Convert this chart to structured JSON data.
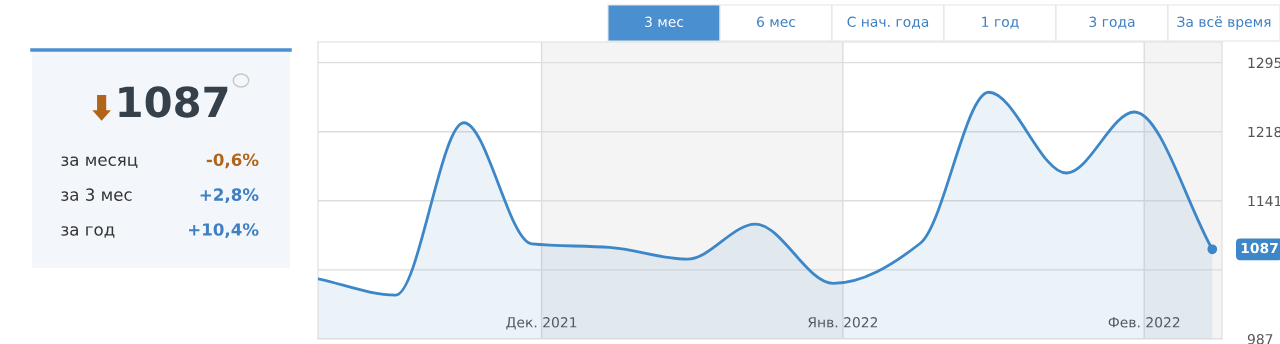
{
  "chart_data": [
    {
      "type": "other",
      "annotations": [
        "1087",
        "за месяц",
        "-0,6%",
        "за 3 мес",
        "+2,8%",
        "за год",
        "+10,4%"
      ],
      "colors": [
        "#36404a",
        "#333333",
        "#b0651a",
        "#333333",
        "#3d7fc1",
        "#333333",
        "#3d7fc1"
      ]
    },
    {
      "type": "area",
      "x": [
        "2021-11-08",
        "2021-11-16",
        "2021-11-23",
        "2021-11-30",
        "2021-12-08",
        "2021-12-16",
        "2021-12-23",
        "2021-12-31",
        "2022-01-09",
        "2022-01-16",
        "2022-01-24",
        "2022-01-31",
        "2022-02-08"
      ],
      "series": [
        {
          "color": "#3d87c8",
          "values": [
            1054,
            1036,
            1228,
            1093,
            1089,
            1076,
            1115,
            1049,
            1094,
            1262,
            1172,
            1240,
            1087
          ]
        }
      ],
      "xlim": [
        "2021-11-08",
        "2022-02-09"
      ],
      "xticks": [
        {
          "value": "2021-12-01",
          "label": "Дек. 2021"
        },
        {
          "value": "2022-01-01",
          "label": "Янв. 2022"
        },
        {
          "value": "2022-02-01",
          "label": "Фев. 2022"
        }
      ],
      "ylim": [
        987,
        1318
      ],
      "yticks": [
        987,
        {
          "value": 1064,
          "label": null
        },
        1141,
        1218,
        1295
      ],
      "bands": [
        {
          "axis": "x",
          "from": "2021-12-01",
          "to": "2022-01-01",
          "color": "#f4f4f4"
        },
        {
          "axis": "x",
          "from": "2022-02-01",
          "to": "2022-02-09",
          "color": "#f4f4f4"
        }
      ],
      "grid": true,
      "annotations": [
        "3 мес",
        "6 мес",
        "С нач. года",
        "1 год",
        "3 года",
        "За всё время",
        {
          "text": "1087",
          "x": "2022-02-08",
          "y": 1087
        }
      ]
    }
  ]
}
